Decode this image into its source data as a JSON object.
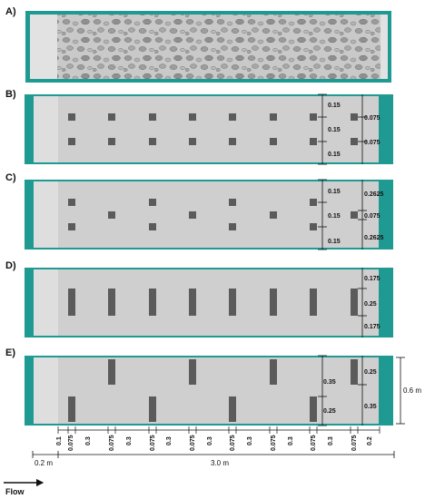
{
  "colors": {
    "frame": "#1f9a93",
    "channel": "#cfcfcf",
    "inlet": "#e2e2e2",
    "block": "#5b5b5b",
    "dimension": "#111111"
  },
  "panels": {
    "a": {
      "label": "A)",
      "surface": "gravel-bed"
    },
    "b": {
      "label": "B)",
      "dims_inner": [
        "0.15",
        "0.15",
        "0.15"
      ],
      "dims_outer": [
        "0.075",
        "0.075"
      ]
    },
    "c": {
      "label": "C)",
      "dims_inner": [
        "0.15",
        "0.15",
        "0.15"
      ],
      "dims_outer": [
        "0.2625",
        "0.075",
        "0.2625"
      ]
    },
    "d": {
      "label": "D)",
      "dims_outer": [
        "0.175",
        "0.25",
        "0.175"
      ]
    },
    "e": {
      "label": "E)",
      "dims_inner": [
        "0.35",
        "0.25"
      ],
      "dims_outer": [
        "0.25",
        "0.35"
      ],
      "width": "0.6 m"
    }
  },
  "bottom_spacings": [
    "0.1",
    "0.075",
    "0.3",
    "0.075",
    "0.3",
    "0.075",
    "0.3",
    "0.075",
    "0.3",
    "0.075",
    "0.3",
    "0.075",
    "0.3",
    "0.075",
    "0.3",
    "0.075",
    "0.2"
  ],
  "lengths": {
    "inlet": "0.2 m",
    "test_section": "3.0 m"
  },
  "flow_label": "Flow"
}
